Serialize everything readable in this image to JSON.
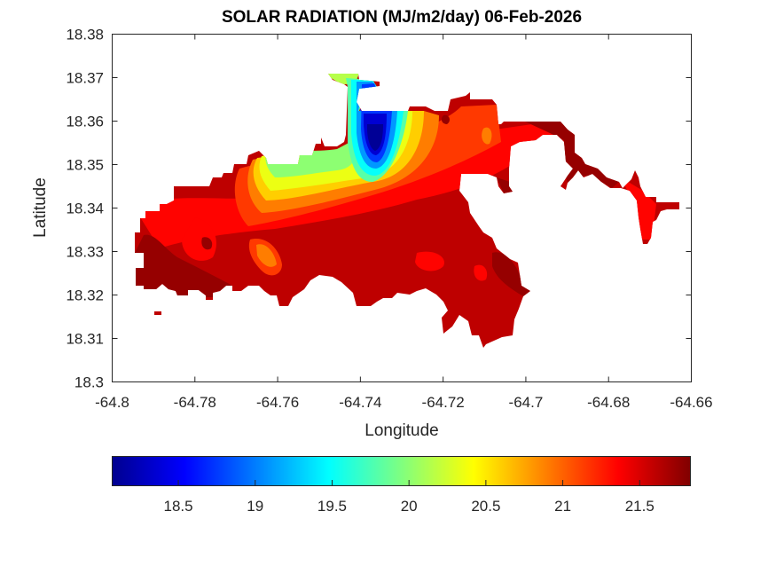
{
  "chart_data": {
    "type": "heatmap",
    "subtype": "filled-contour-map",
    "title": "SOLAR RADIATION (MJ/m2/day) 06-Feb-2026",
    "xlabel": "Longitude",
    "ylabel": "Latitude",
    "xlim": [
      -64.8,
      -64.66
    ],
    "ylim": [
      18.3,
      18.38
    ],
    "xticks": [
      -64.8,
      -64.78,
      -64.76,
      -64.74,
      -64.72,
      -64.7,
      -64.68,
      -64.66
    ],
    "xtick_labels": [
      "-64.8",
      "-64.78",
      "-64.76",
      "-64.74",
      "-64.72",
      "-64.7",
      "-64.68",
      "-64.66"
    ],
    "yticks": [
      18.3,
      18.31,
      18.32,
      18.33,
      18.34,
      18.35,
      18.36,
      18.37,
      18.38
    ],
    "ytick_labels": [
      "18.3",
      "18.31",
      "18.32",
      "18.33",
      "18.34",
      "18.35",
      "18.36",
      "18.37",
      "18.38"
    ],
    "grid": false,
    "colormap": "jet",
    "colorbar": {
      "orientation": "horizontal",
      "placement": "bottom",
      "range": [
        18.07,
        21.83
      ],
      "ticks": [
        18.5,
        19,
        19.5,
        20,
        20.5,
        21,
        21.5
      ],
      "tick_labels": [
        "18.5",
        "19",
        "19.5",
        "20",
        "20.5",
        "21",
        "21.5"
      ],
      "stops": [
        "#00008f",
        "#0000ff",
        "#00ffff",
        "#ffff00",
        "#ff0000",
        "#800000"
      ]
    },
    "features": [
      {
        "name": "minimum-core",
        "lon": -64.737,
        "lat": 18.353,
        "value": 18.1,
        "description": "deep blue low near north-central coast"
      },
      {
        "name": "moderate-plume",
        "lon": -64.758,
        "lat": 18.347,
        "value": 20.0,
        "description": "green/yellow area west of the low"
      },
      {
        "name": "south-and-east",
        "value": 21.6,
        "description": "dark red over most of the southern and eastern land"
      },
      {
        "name": "eastern-peninsula",
        "lon": -64.672,
        "lat": 18.34,
        "value": 21.4
      }
    ],
    "value_range_observed": [
      18.1,
      21.8
    ]
  }
}
